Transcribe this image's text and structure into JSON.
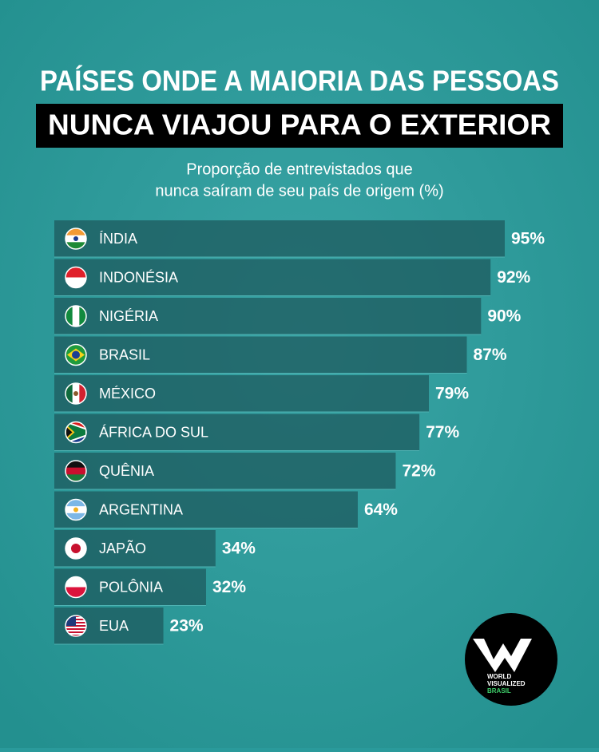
{
  "chart_data": {
    "type": "bar",
    "title": "PAÍSES ONDE A MAIORIA DAS PESSOAS",
    "title_line2": "NUNCA VIAJOU PARA O EXTERIOR",
    "subtitle": "Proporção de entrevistados que",
    "subtitle_line2": "nunca saíram de seu país de origem (%)",
    "categories": [
      "ÍNDIA",
      "INDONÉSIA",
      "NIGÉRIA",
      "BRASIL",
      "MÉXICO",
      "ÁFRICA DO SUL",
      "QUÊNIA",
      "ARGENTINA",
      "JAPÃO",
      "POLÔNIA",
      "EUA"
    ],
    "values": [
      95,
      92,
      90,
      87,
      79,
      77,
      72,
      64,
      34,
      32,
      23
    ],
    "value_labels": [
      "95%",
      "92%",
      "90%",
      "87%",
      "79%",
      "77%",
      "72%",
      "64%",
      "34%",
      "32%",
      "23%"
    ],
    "color": "#1d5a5e",
    "logo": [
      "WORLD",
      "VISUALIZED",
      "BRASIL"
    ]
  }
}
